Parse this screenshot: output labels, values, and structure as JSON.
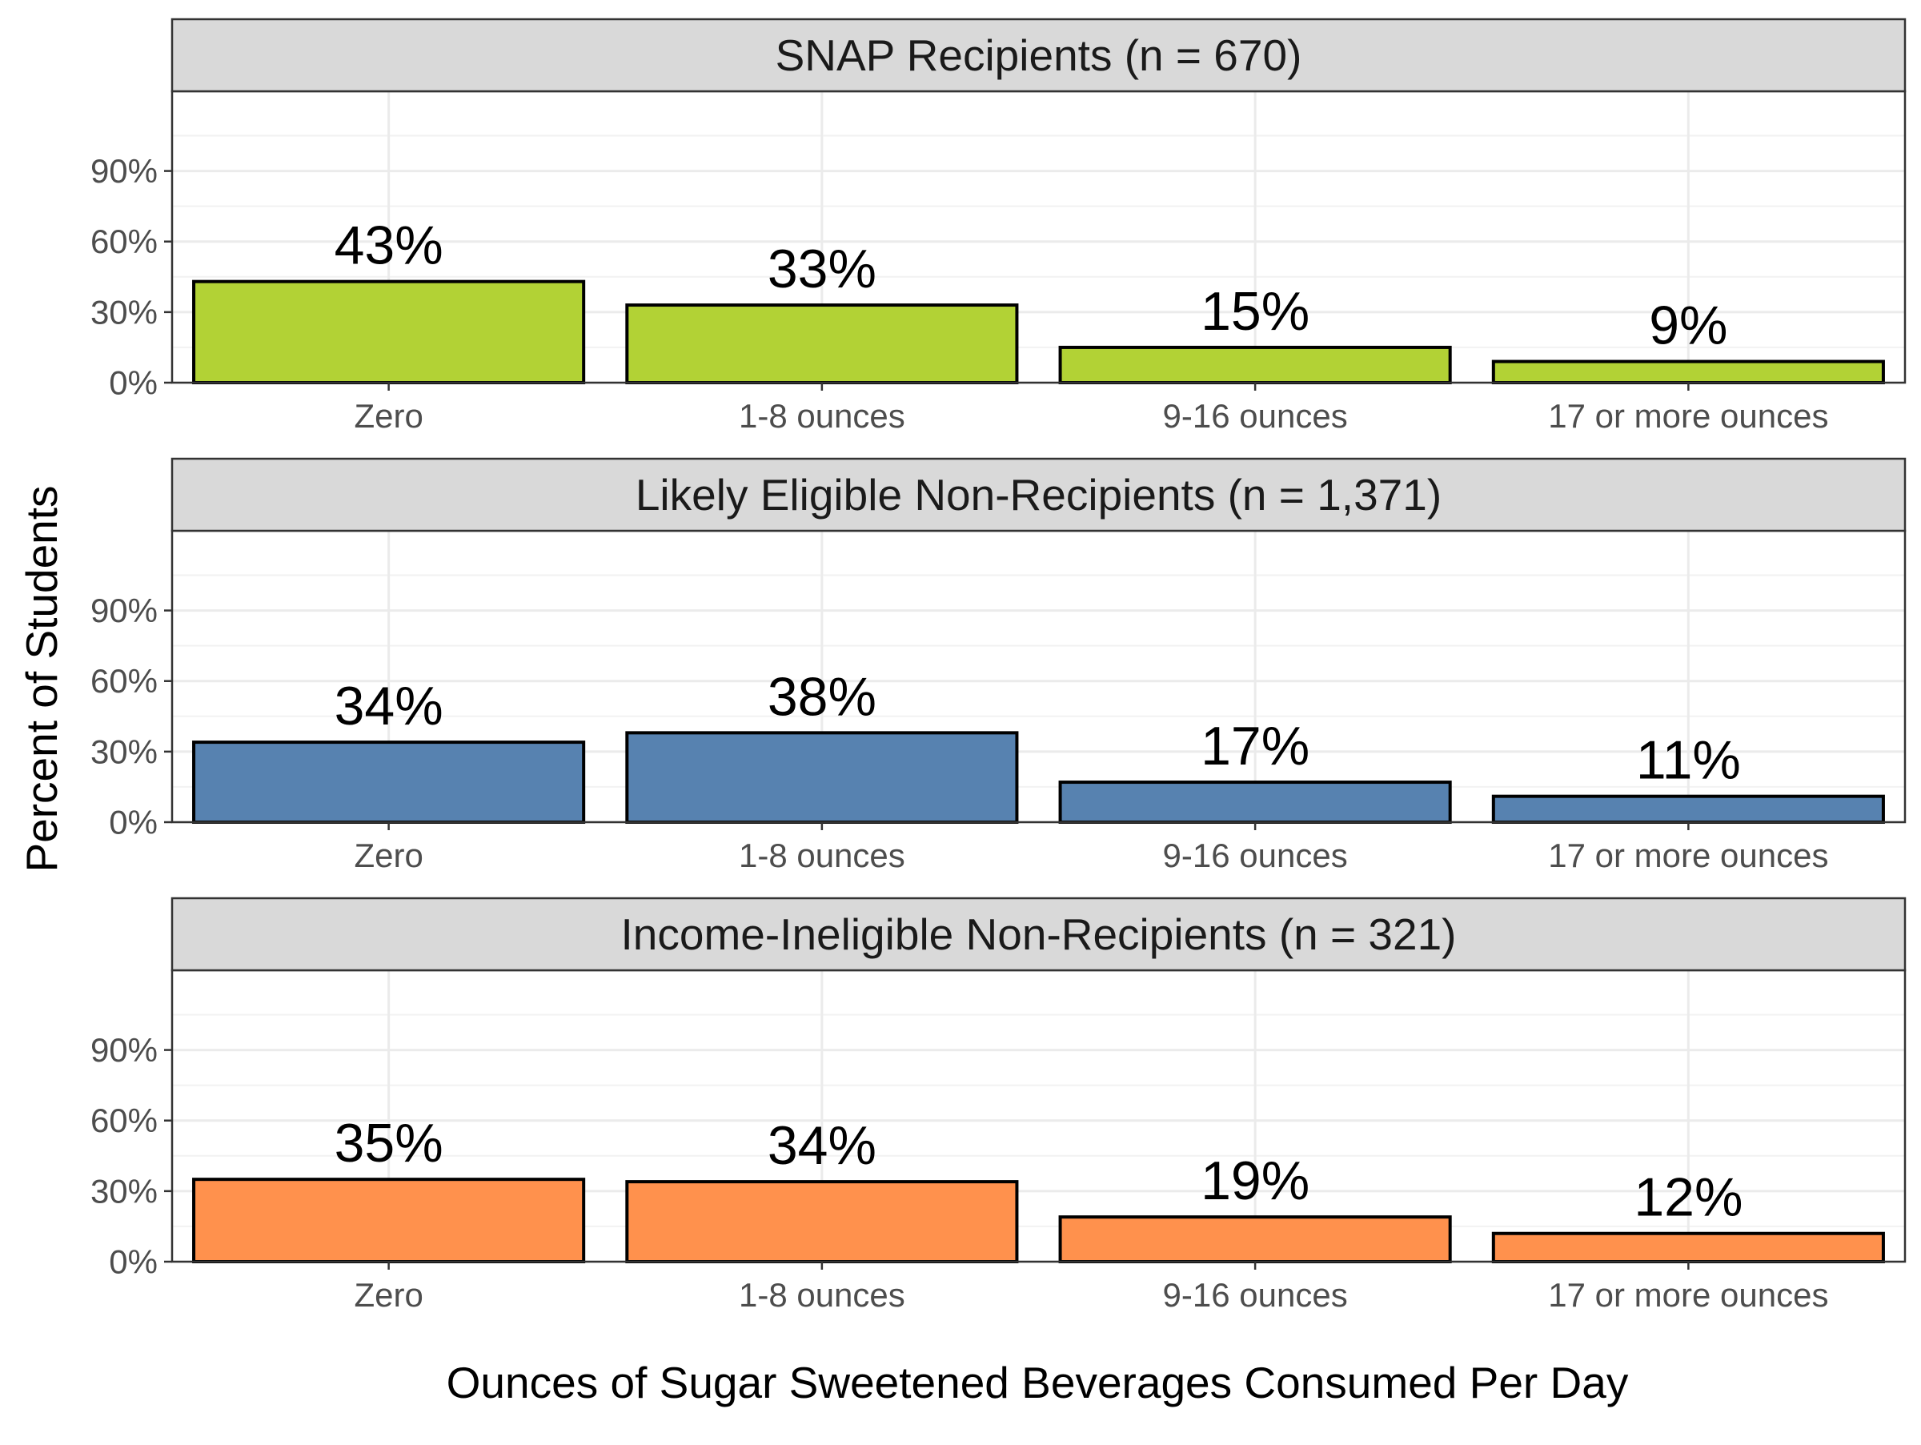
{
  "chart_data": {
    "type": "bar",
    "ylabel": "Percent of Students",
    "xlabel": "Ounces of Sugar Sweetened Beverages Consumed Per Day",
    "ylim": [
      0,
      110
    ],
    "yticks": [
      0,
      30,
      60,
      90
    ],
    "ytick_labels": [
      "0%",
      "30%",
      "60%",
      "90%"
    ],
    "grid": true,
    "legend": "none",
    "categories": [
      "Zero",
      "1-8 ounces",
      "9-16 ounces",
      "17 or more ounces"
    ],
    "facets": [
      {
        "title": "SNAP Recipients (n = 670)",
        "color": "#b2d235",
        "values": [
          43,
          33,
          15,
          9
        ],
        "labels": [
          "43%",
          "33%",
          "15%",
          "9%"
        ]
      },
      {
        "title": "Likely Eligible Non-Recipients (n = 1,371)",
        "color": "#5782b0",
        "values": [
          34,
          38,
          17,
          11
        ],
        "labels": [
          "34%",
          "38%",
          "17%",
          "11%"
        ]
      },
      {
        "title": "Income-Ineligible Non-Recipients (n = 321)",
        "color": "#ff914d",
        "values": [
          35,
          34,
          19,
          12
        ],
        "labels": [
          "35%",
          "34%",
          "19%",
          "12%"
        ]
      }
    ]
  }
}
